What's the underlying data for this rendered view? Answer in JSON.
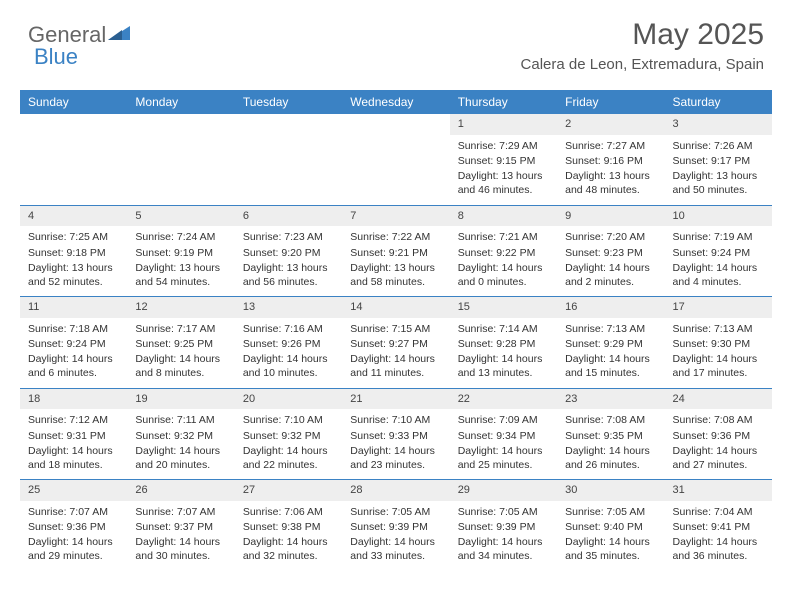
{
  "branding": {
    "logo_text_1": "General",
    "logo_text_2": "Blue",
    "logo_color_gray": "#666666",
    "logo_color_blue": "#3b82c4"
  },
  "header": {
    "month": "May 2025",
    "location": "Calera de Leon, Extremadura, Spain"
  },
  "colors": {
    "header_bg": "#3b82c4",
    "header_text": "#ffffff",
    "daynum_bg": "#eeeeee",
    "week_divider": "#3b82c4",
    "body_text": "#333333",
    "page_bg": "#ffffff"
  },
  "typography": {
    "month_fontsize": 30,
    "location_fontsize": 15,
    "header_cell_fontsize": 12,
    "day_body_fontsize": 10.5
  },
  "weekdays": [
    "Sunday",
    "Monday",
    "Tuesday",
    "Wednesday",
    "Thursday",
    "Friday",
    "Saturday"
  ],
  "weeks": [
    [
      null,
      null,
      null,
      null,
      {
        "n": "1",
        "sr": "Sunrise: 7:29 AM",
        "ss": "Sunset: 9:15 PM",
        "dl": "Daylight: 13 hours and 46 minutes."
      },
      {
        "n": "2",
        "sr": "Sunrise: 7:27 AM",
        "ss": "Sunset: 9:16 PM",
        "dl": "Daylight: 13 hours and 48 minutes."
      },
      {
        "n": "3",
        "sr": "Sunrise: 7:26 AM",
        "ss": "Sunset: 9:17 PM",
        "dl": "Daylight: 13 hours and 50 minutes."
      }
    ],
    [
      {
        "n": "4",
        "sr": "Sunrise: 7:25 AM",
        "ss": "Sunset: 9:18 PM",
        "dl": "Daylight: 13 hours and 52 minutes."
      },
      {
        "n": "5",
        "sr": "Sunrise: 7:24 AM",
        "ss": "Sunset: 9:19 PM",
        "dl": "Daylight: 13 hours and 54 minutes."
      },
      {
        "n": "6",
        "sr": "Sunrise: 7:23 AM",
        "ss": "Sunset: 9:20 PM",
        "dl": "Daylight: 13 hours and 56 minutes."
      },
      {
        "n": "7",
        "sr": "Sunrise: 7:22 AM",
        "ss": "Sunset: 9:21 PM",
        "dl": "Daylight: 13 hours and 58 minutes."
      },
      {
        "n": "8",
        "sr": "Sunrise: 7:21 AM",
        "ss": "Sunset: 9:22 PM",
        "dl": "Daylight: 14 hours and 0 minutes."
      },
      {
        "n": "9",
        "sr": "Sunrise: 7:20 AM",
        "ss": "Sunset: 9:23 PM",
        "dl": "Daylight: 14 hours and 2 minutes."
      },
      {
        "n": "10",
        "sr": "Sunrise: 7:19 AM",
        "ss": "Sunset: 9:24 PM",
        "dl": "Daylight: 14 hours and 4 minutes."
      }
    ],
    [
      {
        "n": "11",
        "sr": "Sunrise: 7:18 AM",
        "ss": "Sunset: 9:24 PM",
        "dl": "Daylight: 14 hours and 6 minutes."
      },
      {
        "n": "12",
        "sr": "Sunrise: 7:17 AM",
        "ss": "Sunset: 9:25 PM",
        "dl": "Daylight: 14 hours and 8 minutes."
      },
      {
        "n": "13",
        "sr": "Sunrise: 7:16 AM",
        "ss": "Sunset: 9:26 PM",
        "dl": "Daylight: 14 hours and 10 minutes."
      },
      {
        "n": "14",
        "sr": "Sunrise: 7:15 AM",
        "ss": "Sunset: 9:27 PM",
        "dl": "Daylight: 14 hours and 11 minutes."
      },
      {
        "n": "15",
        "sr": "Sunrise: 7:14 AM",
        "ss": "Sunset: 9:28 PM",
        "dl": "Daylight: 14 hours and 13 minutes."
      },
      {
        "n": "16",
        "sr": "Sunrise: 7:13 AM",
        "ss": "Sunset: 9:29 PM",
        "dl": "Daylight: 14 hours and 15 minutes."
      },
      {
        "n": "17",
        "sr": "Sunrise: 7:13 AM",
        "ss": "Sunset: 9:30 PM",
        "dl": "Daylight: 14 hours and 17 minutes."
      }
    ],
    [
      {
        "n": "18",
        "sr": "Sunrise: 7:12 AM",
        "ss": "Sunset: 9:31 PM",
        "dl": "Daylight: 14 hours and 18 minutes."
      },
      {
        "n": "19",
        "sr": "Sunrise: 7:11 AM",
        "ss": "Sunset: 9:32 PM",
        "dl": "Daylight: 14 hours and 20 minutes."
      },
      {
        "n": "20",
        "sr": "Sunrise: 7:10 AM",
        "ss": "Sunset: 9:32 PM",
        "dl": "Daylight: 14 hours and 22 minutes."
      },
      {
        "n": "21",
        "sr": "Sunrise: 7:10 AM",
        "ss": "Sunset: 9:33 PM",
        "dl": "Daylight: 14 hours and 23 minutes."
      },
      {
        "n": "22",
        "sr": "Sunrise: 7:09 AM",
        "ss": "Sunset: 9:34 PM",
        "dl": "Daylight: 14 hours and 25 minutes."
      },
      {
        "n": "23",
        "sr": "Sunrise: 7:08 AM",
        "ss": "Sunset: 9:35 PM",
        "dl": "Daylight: 14 hours and 26 minutes."
      },
      {
        "n": "24",
        "sr": "Sunrise: 7:08 AM",
        "ss": "Sunset: 9:36 PM",
        "dl": "Daylight: 14 hours and 27 minutes."
      }
    ],
    [
      {
        "n": "25",
        "sr": "Sunrise: 7:07 AM",
        "ss": "Sunset: 9:36 PM",
        "dl": "Daylight: 14 hours and 29 minutes."
      },
      {
        "n": "26",
        "sr": "Sunrise: 7:07 AM",
        "ss": "Sunset: 9:37 PM",
        "dl": "Daylight: 14 hours and 30 minutes."
      },
      {
        "n": "27",
        "sr": "Sunrise: 7:06 AM",
        "ss": "Sunset: 9:38 PM",
        "dl": "Daylight: 14 hours and 32 minutes."
      },
      {
        "n": "28",
        "sr": "Sunrise: 7:05 AM",
        "ss": "Sunset: 9:39 PM",
        "dl": "Daylight: 14 hours and 33 minutes."
      },
      {
        "n": "29",
        "sr": "Sunrise: 7:05 AM",
        "ss": "Sunset: 9:39 PM",
        "dl": "Daylight: 14 hours and 34 minutes."
      },
      {
        "n": "30",
        "sr": "Sunrise: 7:05 AM",
        "ss": "Sunset: 9:40 PM",
        "dl": "Daylight: 14 hours and 35 minutes."
      },
      {
        "n": "31",
        "sr": "Sunrise: 7:04 AM",
        "ss": "Sunset: 9:41 PM",
        "dl": "Daylight: 14 hours and 36 minutes."
      }
    ]
  ]
}
